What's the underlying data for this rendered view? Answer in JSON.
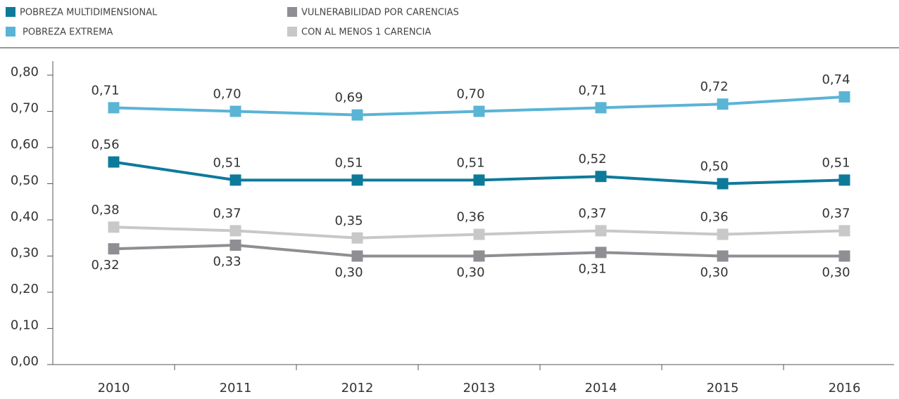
{
  "chart_data": {
    "type": "line",
    "categories": [
      "2010",
      "2011",
      "2012",
      "2013",
      "2014",
      "2015",
      "2016"
    ],
    "series": [
      {
        "name": "POBREZA MULTIDIMENSIONAL",
        "color": "#0e7a9a",
        "values": [
          0.56,
          0.51,
          0.51,
          0.51,
          0.52,
          0.5,
          0.51
        ],
        "value_labels": [
          "0,56",
          "0,51",
          "0,51",
          "0,51",
          "0,52",
          "0,50",
          "0,51"
        ]
      },
      {
        "name": "POBREZA EXTREMA",
        "color": "#5ab4d6",
        "values": [
          0.71,
          0.7,
          0.69,
          0.7,
          0.71,
          0.72,
          0.74
        ],
        "value_labels": [
          "0,71",
          "0,70",
          "0,69",
          "0,70",
          "0,71",
          "0,72",
          "0,74"
        ]
      },
      {
        "name": "VULNERABILIDAD POR CARENCIAS",
        "color": "#8e8e93",
        "values": [
          0.32,
          0.33,
          0.3,
          0.3,
          0.31,
          0.3,
          0.3
        ],
        "value_labels": [
          "0,32",
          "0,33",
          "0,30",
          "0,30",
          "0,31",
          "0,30",
          "0,30"
        ]
      },
      {
        "name": "CON AL MENOS 1 CARENCIA",
        "color": "#c8c8c8",
        "values": [
          0.38,
          0.37,
          0.35,
          0.36,
          0.37,
          0.36,
          0.37
        ],
        "value_labels": [
          "0,38",
          "0,37",
          "0,35",
          "0,36",
          "0,37",
          "0,36",
          "0,37"
        ]
      }
    ],
    "ylim": [
      0,
      0.8
    ],
    "yticks": [
      {
        "value": 0,
        "label": "0,00"
      },
      {
        "value": 0.1,
        "label": "0,10"
      },
      {
        "value": 0.2,
        "label": "0,20"
      },
      {
        "value": 0.3,
        "label": "0,30"
      },
      {
        "value": 0.4,
        "label": "0,40"
      },
      {
        "value": 0.5,
        "label": "0,50"
      },
      {
        "value": 0.6,
        "label": "0,60"
      },
      {
        "value": 0.7,
        "label": "0,70"
      },
      {
        "value": 0.8,
        "label": "0,80"
      }
    ],
    "legend": "top"
  }
}
